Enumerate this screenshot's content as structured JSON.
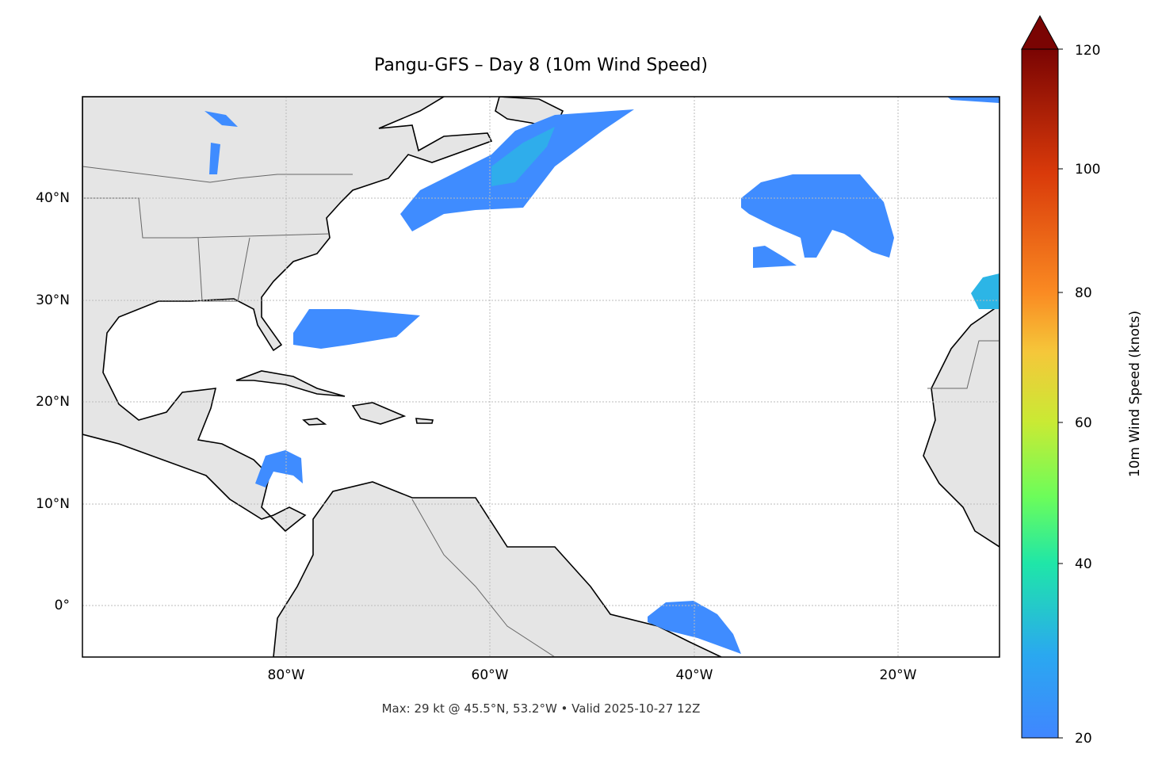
{
  "title": "Pangu-GFS – Day 8 (10m Wind Speed)",
  "map": {
    "projection": "PlateCarree",
    "extent_lon": [
      -100,
      -10
    ],
    "extent_lat": [
      -5,
      50
    ],
    "land_color": "#e5e5e5",
    "wind_color_low": "#3f8cff",
    "wind_color_core": "#2cb5e6",
    "x_ticks": [
      "80°W",
      "60°W",
      "40°W",
      "20°W"
    ],
    "y_ticks": [
      "40°N",
      "30°N",
      "20°N",
      "10°N",
      "0°"
    ]
  },
  "colorbar": {
    "label": "10m Wind Speed (knots)",
    "ticks": [
      "120",
      "100",
      "80",
      "60",
      "40",
      "20"
    ],
    "range": [
      20,
      120
    ],
    "colormap": "turbo",
    "extend": "max"
  },
  "footer": "Max: 29 kt @ 45.5°N, 53.2°W • Valid 2025-10-27 12Z"
}
